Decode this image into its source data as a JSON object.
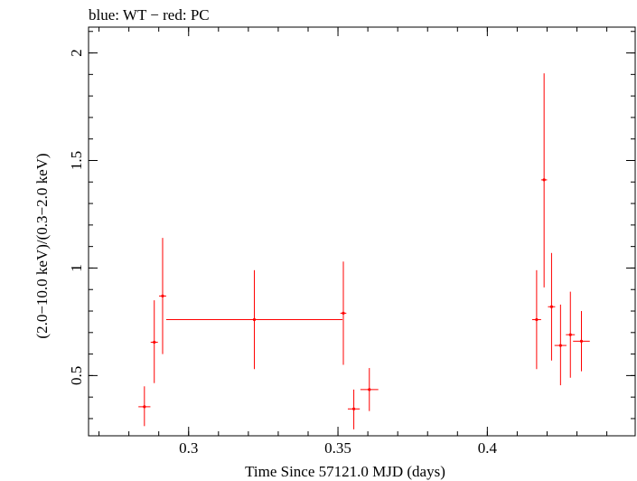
{
  "chart_data": {
    "type": "scatter",
    "title": "blue: WT − red: PC",
    "xlabel": "Time Since 57121.0 MJD (days)",
    "ylabel": "(2.0−10.0 keV)/(0.3−2.0 keV)",
    "xlim": [
      0.2665,
      0.4495
    ],
    "ylim": [
      0.22,
      2.12
    ],
    "x_ticks": [
      {
        "value": 0.3,
        "label": "0.3"
      },
      {
        "value": 0.35,
        "label": "0.35"
      },
      {
        "value": 0.4,
        "label": "0.4"
      }
    ],
    "y_ticks": [
      {
        "value": 0.5,
        "label": "0.5"
      },
      {
        "value": 1.0,
        "label": "1"
      },
      {
        "value": 1.5,
        "label": "1.5"
      },
      {
        "value": 2.0,
        "label": "2"
      }
    ],
    "x_minor_step": 0.01,
    "y_minor_step": 0.1,
    "series": [
      {
        "name": "PC",
        "color": "#ff0000",
        "points": [
          {
            "x": 0.2852,
            "xerr": 0.002,
            "y": 0.355,
            "ylo": 0.265,
            "yhi": 0.45
          },
          {
            "x": 0.2885,
            "xerr": 0.0012,
            "y": 0.655,
            "ylo": 0.465,
            "yhi": 0.85
          },
          {
            "x": 0.2913,
            "xerr": 0.0012,
            "y": 0.87,
            "ylo": 0.6,
            "yhi": 1.14
          },
          {
            "x": 0.322,
            "xerr": 0.0295,
            "y": 0.76,
            "ylo": 0.53,
            "yhi": 0.99
          },
          {
            "x": 0.3518,
            "xerr": 0.001,
            "y": 0.79,
            "ylo": 0.55,
            "yhi": 1.03
          },
          {
            "x": 0.3553,
            "xerr": 0.002,
            "y": 0.345,
            "ylo": 0.25,
            "yhi": 0.435
          },
          {
            "x": 0.3605,
            "xerr": 0.003,
            "y": 0.435,
            "ylo": 0.335,
            "yhi": 0.535
          },
          {
            "x": 0.4165,
            "xerr": 0.0015,
            "y": 0.76,
            "ylo": 0.53,
            "yhi": 0.99
          },
          {
            "x": 0.419,
            "xerr": 0.001,
            "y": 1.41,
            "ylo": 0.91,
            "yhi": 1.905
          },
          {
            "x": 0.4215,
            "xerr": 0.0012,
            "y": 0.82,
            "ylo": 0.57,
            "yhi": 1.07
          },
          {
            "x": 0.4245,
            "xerr": 0.002,
            "y": 0.64,
            "ylo": 0.455,
            "yhi": 0.83
          },
          {
            "x": 0.4278,
            "xerr": 0.0015,
            "y": 0.69,
            "ylo": 0.49,
            "yhi": 0.89
          },
          {
            "x": 0.4315,
            "xerr": 0.0028,
            "y": 0.66,
            "ylo": 0.52,
            "yhi": 0.8
          }
        ]
      }
    ]
  }
}
